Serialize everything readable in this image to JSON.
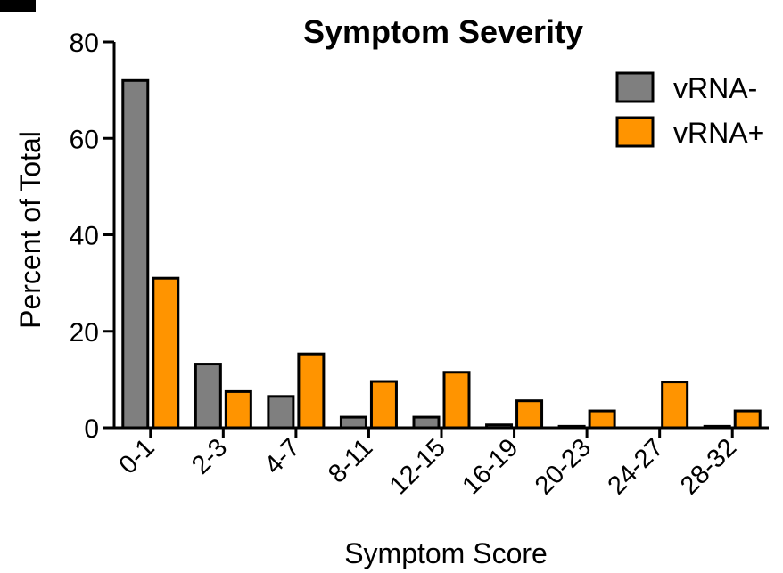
{
  "chart_data": {
    "type": "bar",
    "title": "Symptom Severity",
    "xlabel": "Symptom Score",
    "ylabel": "Percent of Total",
    "categories": [
      "0-1",
      "2-3",
      "4-7",
      "8-11",
      "12-15",
      "16-19",
      "20-23",
      "24-27",
      "28-32"
    ],
    "series": [
      {
        "name": "vRNA-",
        "color": "#7f7f7f",
        "values": [
          72,
          13.2,
          6.5,
          2.2,
          2.2,
          0.6,
          0.3,
          0,
          0.3
        ]
      },
      {
        "name": "vRNA+",
        "color": "#ff9400",
        "values": [
          31,
          7.5,
          15.3,
          9.6,
          11.5,
          5.6,
          3.5,
          9.5,
          3.5
        ]
      }
    ],
    "ylim": [
      0,
      80
    ],
    "yticks": [
      0,
      20,
      40,
      60,
      80
    ],
    "grid": false,
    "legend": "top-right"
  }
}
